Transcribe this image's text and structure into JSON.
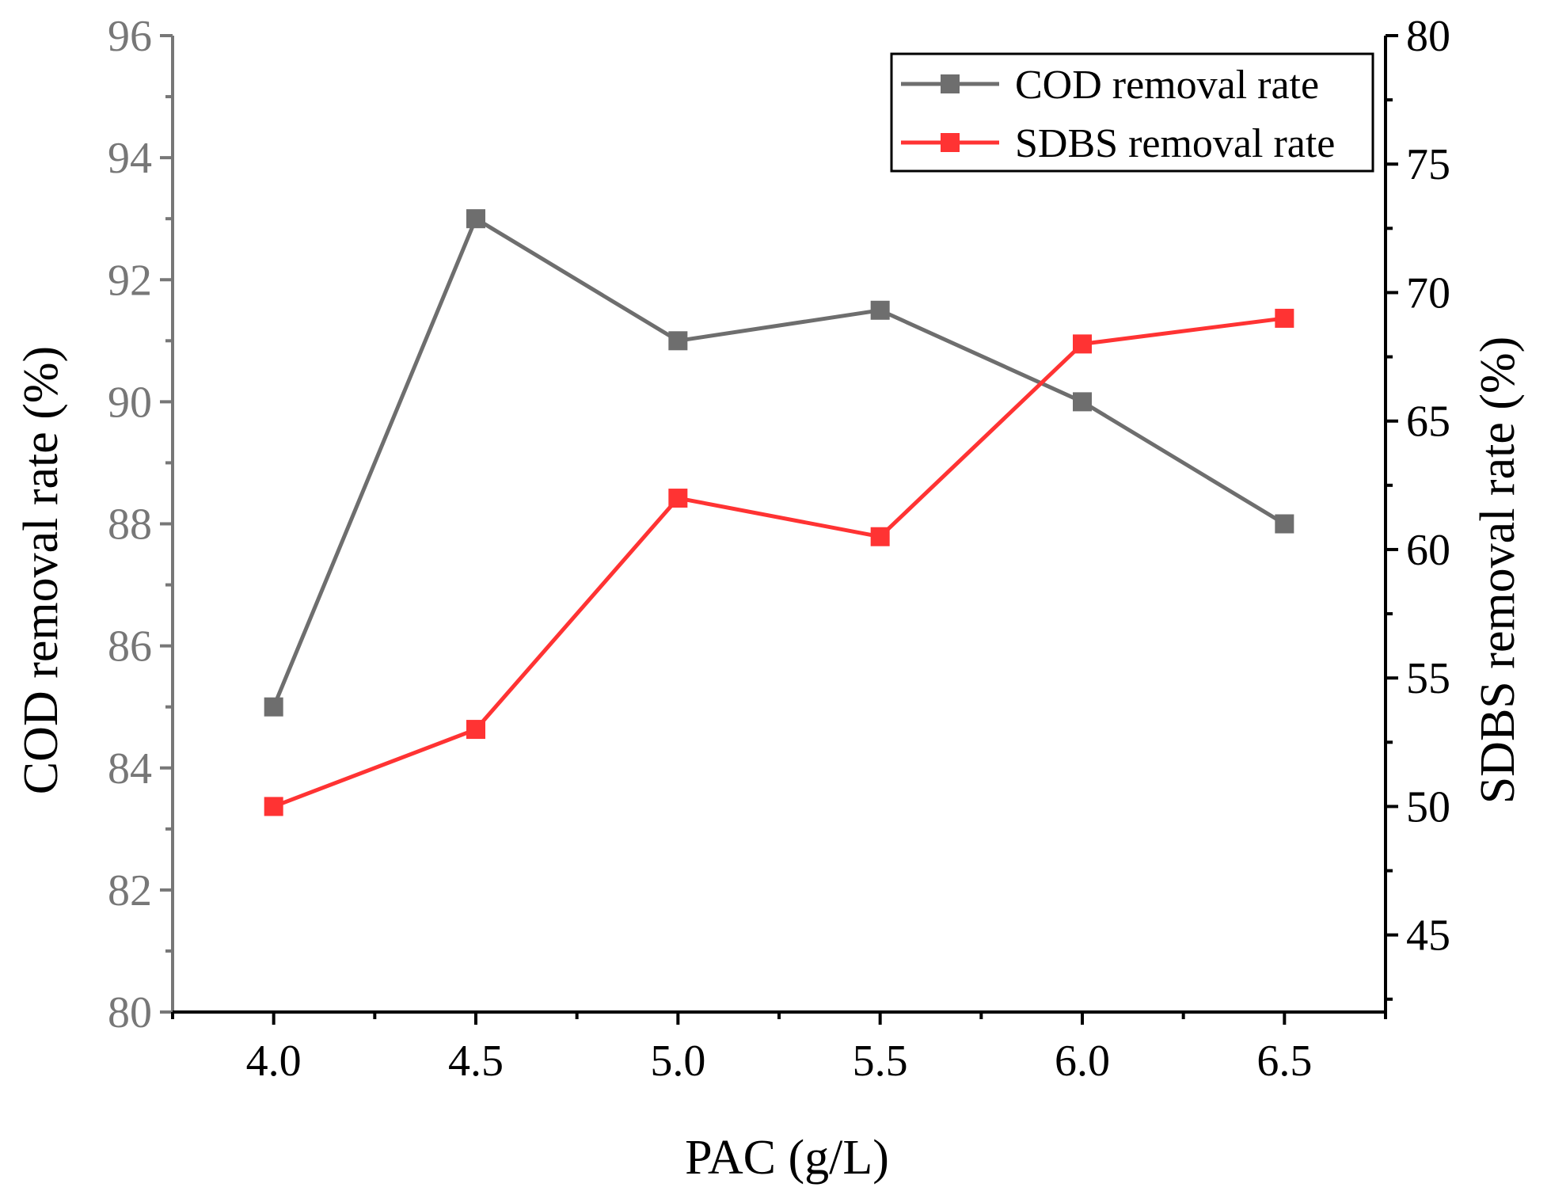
{
  "chart_data": {
    "type": "line",
    "title": "",
    "xlabel": "PAC (g/L)",
    "ylabel_left": "COD removal rate (%)",
    "ylabel_right": "SDBS removal rate (%)",
    "x": [
      4.0,
      4.5,
      5.0,
      5.5,
      6.0,
      6.5
    ],
    "xticks": [
      "4.0",
      "4.5",
      "5.0",
      "5.5",
      "6.0",
      "6.5"
    ],
    "xlim": [
      3.75,
      6.75
    ],
    "ylim_left": [
      80,
      96
    ],
    "yticks_left": [
      "80",
      "82",
      "84",
      "86",
      "88",
      "90",
      "92",
      "94",
      "96"
    ],
    "ylim_right": [
      42,
      80
    ],
    "yticks_right": [
      "45",
      "50",
      "55",
      "60",
      "65",
      "70",
      "75",
      "80"
    ],
    "series": [
      {
        "name": "COD removal rate",
        "axis": "left",
        "color": "#6e6e6e",
        "values": [
          85.0,
          93.0,
          91.0,
          91.5,
          90.0,
          88.0
        ]
      },
      {
        "name": "SDBS removal rate",
        "axis": "right",
        "color": "#ff3333",
        "values": [
          50.0,
          53.0,
          62.0,
          60.5,
          68.0,
          69.0
        ]
      }
    ],
    "legend_position": "top-right",
    "grid": false,
    "left_axis_color": "#777777",
    "right_axis_color": "#000000"
  }
}
